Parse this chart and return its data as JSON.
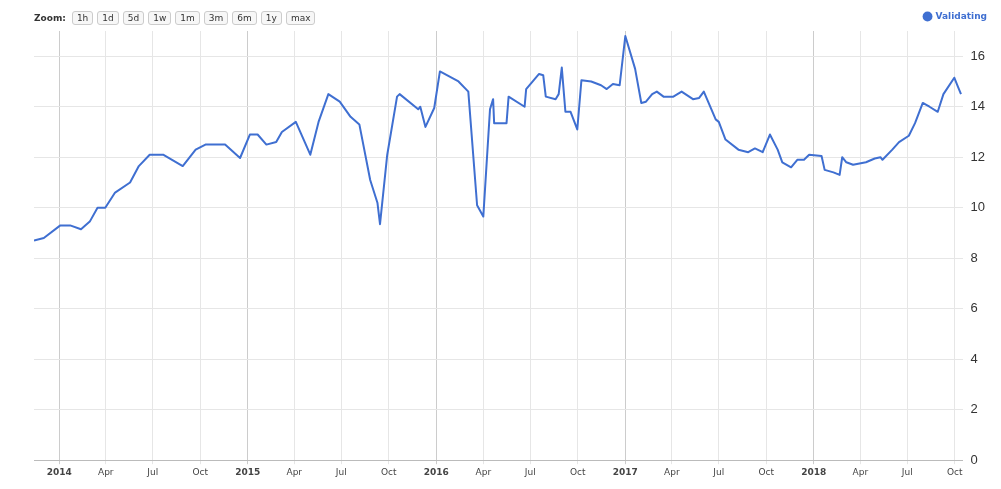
{
  "chart_data": {
    "type": "line",
    "annotations": [
      "Zoom:",
      "1h",
      "1d",
      "5d",
      "1w",
      "1m",
      "3m",
      "6m",
      "1y",
      "max"
    ],
    "legend": "top right",
    "grid": true,
    "marker": "none",
    "xlim": [
      "2013-11-13",
      "2018-10-16"
    ],
    "xticks": [
      {
        "value": "2014-01-01",
        "label": "2014"
      },
      {
        "value": "2014-04-01",
        "label": "Apr"
      },
      {
        "value": "2014-07-01",
        "label": "Jul"
      },
      {
        "value": "2014-10-01",
        "label": "Oct"
      },
      {
        "value": "2015-01-01",
        "label": "2015"
      },
      {
        "value": "2015-04-01",
        "label": "Apr"
      },
      {
        "value": "2015-07-01",
        "label": "Jul"
      },
      {
        "value": "2015-10-01",
        "label": "Oct"
      },
      {
        "value": "2016-01-01",
        "label": "2016"
      },
      {
        "value": "2016-04-01",
        "label": "Apr"
      },
      {
        "value": "2016-07-01",
        "label": "Jul"
      },
      {
        "value": "2016-10-01",
        "label": "Oct"
      },
      {
        "value": "2017-01-01",
        "label": "2017"
      },
      {
        "value": "2017-04-01",
        "label": "Apr"
      },
      {
        "value": "2017-07-01",
        "label": "Jul"
      },
      {
        "value": "2017-10-01",
        "label": "Oct"
      },
      {
        "value": "2018-01-01",
        "label": "2018"
      },
      {
        "value": "2018-04-01",
        "label": "Apr"
      },
      {
        "value": "2018-07-01",
        "label": "Jul"
      },
      {
        "value": "2018-10-01",
        "label": "Oct"
      }
    ],
    "ylim": [
      0,
      17
    ],
    "yticks": [
      0,
      2,
      4,
      6,
      8,
      10,
      12,
      14,
      16
    ],
    "x": [
      "2013-11-13",
      "2013-12-02",
      "2014-01-03",
      "2014-01-22",
      "2014-02-12",
      "2014-03-01",
      "2014-03-16",
      "2014-03-31",
      "2014-04-19",
      "2014-05-18",
      "2014-06-04",
      "2014-06-25",
      "2014-07-21",
      "2014-08-28",
      "2014-09-22",
      "2014-10-11",
      "2014-11-18",
      "2014-12-17",
      "2015-01-05",
      "2015-01-20",
      "2015-02-06",
      "2015-02-25",
      "2015-03-08",
      "2015-04-04",
      "2015-05-02",
      "2015-05-18",
      "2015-06-06",
      "2015-06-28",
      "2015-07-19",
      "2015-08-05",
      "2015-08-26",
      "2015-09-09",
      "2015-09-14",
      "2015-09-28",
      "2015-10-17",
      "2015-10-22",
      "2015-11-27",
      "2015-12-01",
      "2015-12-11",
      "2015-12-28",
      "2016-01-08",
      "2016-02-13",
      "2016-03-03",
      "2016-03-20",
      "2016-04-01",
      "2016-04-14",
      "2016-04-20",
      "2016-04-22",
      "2016-05-16",
      "2016-05-20",
      "2016-06-20",
      "2016-06-23",
      "2016-07-18",
      "2016-07-26",
      "2016-07-31",
      "2016-08-19",
      "2016-08-25",
      "2016-08-31",
      "2016-09-07",
      "2016-09-17",
      "2016-09-30",
      "2016-10-08",
      "2016-10-27",
      "2016-11-15",
      "2016-11-26",
      "2016-12-08",
      "2016-12-21",
      "2017-01-01",
      "2017-01-20",
      "2017-02-01",
      "2017-02-10",
      "2017-02-22",
      "2017-03-03",
      "2017-03-16",
      "2017-04-04",
      "2017-04-20",
      "2017-05-12",
      "2017-05-24",
      "2017-06-02",
      "2017-06-25",
      "2017-07-01",
      "2017-07-14",
      "2017-08-08",
      "2017-08-27",
      "2017-09-09",
      "2017-09-24",
      "2017-10-08",
      "2017-10-23",
      "2017-11-01",
      "2017-11-18",
      "2017-11-30",
      "2017-12-13",
      "2017-12-23",
      "2018-01-16",
      "2018-01-22",
      "2018-02-08",
      "2018-02-20",
      "2018-02-25",
      "2018-03-05",
      "2018-03-18",
      "2018-04-12",
      "2018-04-29",
      "2018-05-10",
      "2018-05-14",
      "2018-06-02",
      "2018-06-15",
      "2018-07-04",
      "2018-07-16",
      "2018-07-31",
      "2018-08-13",
      "2018-08-29",
      "2018-09-09",
      "2018-09-30",
      "2018-10-07",
      "2018-10-13"
    ],
    "series": [
      {
        "name": "Validating",
        "color": "#3f6fd1",
        "values": [
          8.7,
          8.8,
          9.3,
          9.3,
          9.15,
          9.45,
          10.0,
          10.0,
          10.6,
          11.0,
          11.65,
          12.1,
          12.1,
          11.65,
          12.3,
          12.5,
          12.5,
          11.97,
          12.9,
          12.9,
          12.5,
          12.6,
          13.0,
          13.4,
          12.1,
          13.4,
          14.5,
          14.2,
          13.6,
          13.3,
          11.1,
          10.2,
          9.35,
          12.1,
          14.4,
          14.5,
          13.9,
          14.0,
          13.2,
          13.95,
          15.4,
          15.0,
          14.6,
          10.1,
          9.65,
          13.9,
          14.3,
          13.35,
          13.35,
          14.4,
          14.0,
          14.7,
          15.3,
          15.25,
          14.4,
          14.3,
          14.5,
          15.55,
          13.8,
          13.8,
          13.1,
          15.05,
          15.0,
          14.85,
          14.7,
          14.9,
          14.85,
          16.8,
          15.5,
          14.15,
          14.2,
          14.5,
          14.6,
          14.4,
          14.4,
          14.6,
          14.3,
          14.35,
          14.6,
          13.5,
          13.4,
          12.7,
          12.3,
          12.2,
          12.35,
          12.2,
          12.9,
          12.3,
          11.8,
          11.6,
          11.9,
          11.9,
          12.1,
          12.05,
          11.5,
          11.4,
          11.3,
          12.0,
          11.8,
          11.7,
          11.8,
          11.95,
          12.0,
          11.9,
          12.3,
          12.6,
          12.85,
          13.35,
          14.15,
          14.0,
          13.8,
          14.5,
          15.15,
          14.8,
          14.5
        ]
      }
    ]
  }
}
